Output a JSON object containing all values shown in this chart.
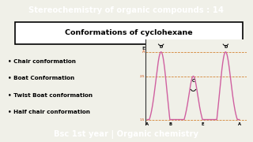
{
  "title_bar_text": "Stereochemistry of organic compounds : 14",
  "title_bar_bg": "#1a2b7a",
  "title_bar_color": "#ffffff",
  "box_text": "Conformations of cyclohexane",
  "box_bg": "#ffffff",
  "box_border": "#000000",
  "main_bg": "#f0f0e8",
  "bullet_items": [
    "• Chair conformation",
    "• Boat Conformation",
    "• Twist Boat conformation",
    "• Half chair conformation"
  ],
  "bullet_color": "#000000",
  "bottom_bar_text": "Bsc 1st year | Organic chemistry",
  "bottom_bar_bg": "#1a2b7a",
  "bottom_bar_color": "#ffffff",
  "curve_color": "#d060a0",
  "dashed_color": "#cc6600",
  "axis_color": "#333333",
  "label_color": "#cc4400"
}
